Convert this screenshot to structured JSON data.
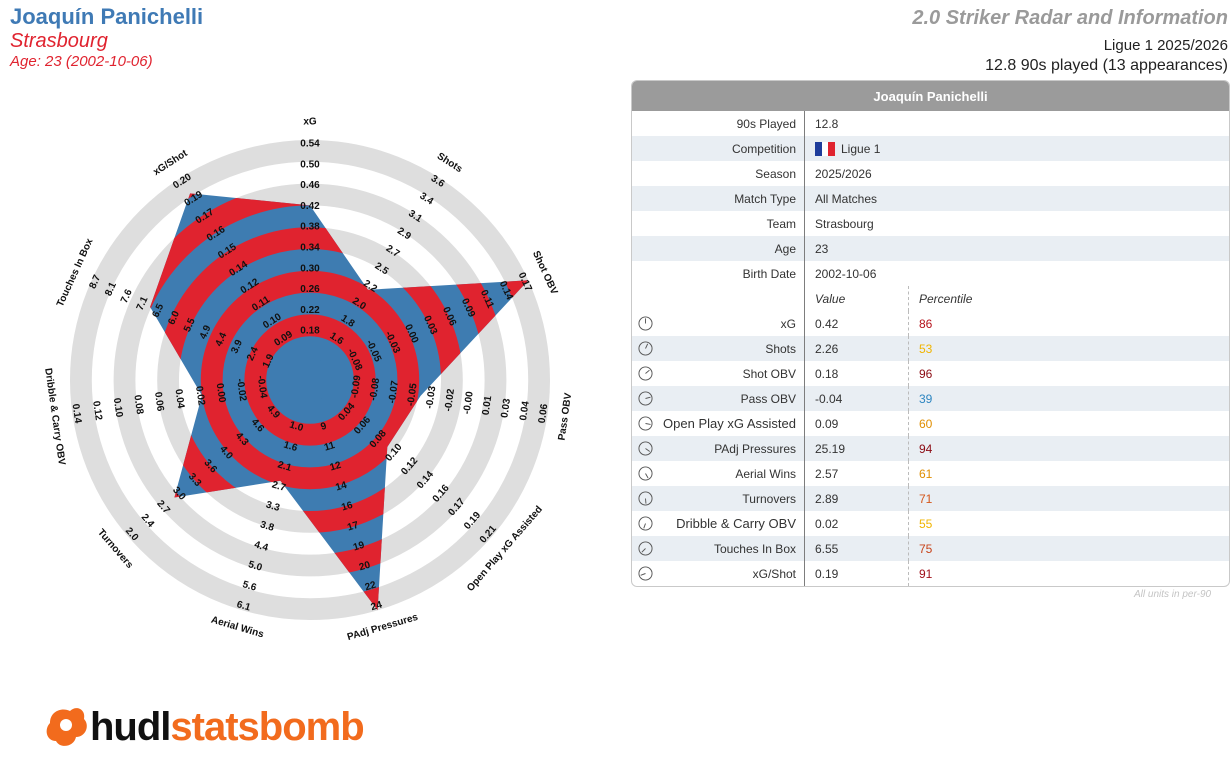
{
  "header": {
    "player_name": "Joaquín Panichelli",
    "team": "Strasbourg",
    "age_line": "Age: 23 (2002-10-06)",
    "radar_title": "2.0 Striker Radar and Information",
    "league_season": "Ligue 1 2025/2026",
    "played_line": "12.8 90s played (13 appearances)"
  },
  "colors": {
    "blue": "#4682b4",
    "red": "#e0232f",
    "ring_grey": "#dedede",
    "poly_blue": "#3e7cb1"
  },
  "chart_data": {
    "type": "radar",
    "ring_count": 5,
    "axes": [
      {
        "label": "xG",
        "ticks": [
          "0.18",
          "0.22",
          "0.26",
          "0.30",
          "0.34",
          "0.38",
          "0.42",
          "0.46",
          "0.50",
          "0.54"
        ],
        "min": 0.14,
        "max": 0.54,
        "value": 0.42
      },
      {
        "label": "Shots",
        "ticks": [
          "1.6",
          "1.8",
          "2.0",
          "2.2",
          "2.5",
          "2.7",
          "2.9",
          "3.1",
          "3.4",
          "3.6"
        ],
        "min": 1.4,
        "max": 3.6,
        "value": 2.26
      },
      {
        "label": "Shot OBV",
        "ticks": [
          "-0.08",
          "-0.05",
          "-0.03",
          "0.00",
          "0.03",
          "0.06",
          "0.09",
          "0.11",
          "0.14",
          "0.17"
        ],
        "min": -0.11,
        "max": 0.17,
        "value": 0.18
      },
      {
        "label": "Pass OBV",
        "ticks": [
          "-0.09",
          "-0.08",
          "-0.07",
          "-0.05",
          "-0.03",
          "-0.02",
          "-0.00",
          "0.01",
          "0.03",
          "0.04",
          "0.06"
        ],
        "min": -0.11,
        "max": 0.06,
        "value": -0.04
      },
      {
        "label": "Open Play xG Assisted",
        "ticks": [
          "0.04",
          "0.06",
          "0.08",
          "0.10",
          "0.12",
          "0.14",
          "0.16",
          "0.17",
          "0.19",
          "0.21"
        ],
        "min": 0.02,
        "max": 0.21,
        "value": 0.09
      },
      {
        "label": "PAdj Pressures",
        "ticks": [
          "9",
          "11",
          "12",
          "14",
          "16",
          "17",
          "19",
          "20",
          "22",
          "24"
        ],
        "min": 7,
        "max": 24,
        "value": 25.19
      },
      {
        "label": "Aerial Wins",
        "ticks": [
          "1.0",
          "1.6",
          "2.1",
          "2.7",
          "3.3",
          "3.8",
          "4.4",
          "5.0",
          "5.6",
          "6.1"
        ],
        "min": 0.4,
        "max": 6.1,
        "value": 2.57
      },
      {
        "label": "Turnovers",
        "ticks": [
          "4.9",
          "4.6",
          "4.3",
          "4.0",
          "3.6",
          "3.3",
          "3.0",
          "2.7",
          "2.4",
          "2.0"
        ],
        "min": 5.2,
        "max": 2.0,
        "value": 2.89
      },
      {
        "label": "Dribble & Carry OBV",
        "ticks": [
          "-0.04",
          "-0.02",
          "0.00",
          "0.02",
          "0.04",
          "0.06",
          "0.08",
          "0.10",
          "0.12",
          "0.14"
        ],
        "min": -0.06,
        "max": 0.14,
        "value": 0.02
      },
      {
        "label": "Touches In Box",
        "ticks": [
          "1.9",
          "2.4",
          "3.9",
          "4.4",
          "4.9",
          "5.5",
          "6.0",
          "6.5",
          "7.1",
          "7.6",
          "8.1",
          "8.7"
        ],
        "min": 1.4,
        "max": 8.7,
        "value": 6.55
      },
      {
        "label": "xG/Shot",
        "ticks": [
          "0.09",
          "0.10",
          "0.11",
          "0.12",
          "0.14",
          "0.15",
          "0.16",
          "0.17",
          "0.19",
          "0.20"
        ],
        "min": 0.08,
        "max": 0.2,
        "value": 0.19
      }
    ]
  },
  "table": {
    "title": "Joaquín Panichelli",
    "info_rows": [
      {
        "label": "90s Played",
        "value": "12.8"
      },
      {
        "label": "Competition",
        "value": "Ligue 1",
        "flag": true
      },
      {
        "label": "Season",
        "value": "2025/2026"
      },
      {
        "label": "Match Type",
        "value": "All Matches"
      },
      {
        "label": "Team",
        "value": "Strasbourg"
      },
      {
        "label": "Age",
        "value": "23"
      },
      {
        "label": "Birth Date",
        "value": "2002-10-06"
      }
    ],
    "value_header": "Value",
    "percentile_header": "Percentile",
    "metrics": [
      {
        "label": "xG",
        "value": "0.42",
        "percentile": "86",
        "color": "#b5121b",
        "icon": "gauge-icon"
      },
      {
        "label": "Shots",
        "value": "2.26",
        "percentile": "53",
        "color": "#f0b400",
        "icon": "gauge-icon"
      },
      {
        "label": "Shot OBV",
        "value": "0.18",
        "percentile": "96",
        "color": "#8b0a12",
        "icon": "gauge-icon"
      },
      {
        "label": "Pass OBV",
        "value": "-0.04",
        "percentile": "39",
        "color": "#2e86c1",
        "icon": "gauge-icon"
      },
      {
        "label": "Open Play xG Assisted",
        "value": "0.09",
        "percentile": "60",
        "color": "#e08e00",
        "icon": "gauge-icon"
      },
      {
        "label": "PAdj Pressures",
        "value": "25.19",
        "percentile": "94",
        "color": "#8b0a12",
        "icon": "gauge-icon"
      },
      {
        "label": "Aerial Wins",
        "value": "2.57",
        "percentile": "61",
        "color": "#e08e00",
        "icon": "gauge-icon"
      },
      {
        "label": "Turnovers",
        "value": "2.89",
        "percentile": "71",
        "color": "#d4561a",
        "icon": "gauge-icon"
      },
      {
        "label": "Dribble & Carry OBV",
        "value": "0.02",
        "percentile": "55",
        "color": "#f0b400",
        "icon": "gauge-icon"
      },
      {
        "label": "Touches In Box",
        "value": "6.55",
        "percentile": "75",
        "color": "#c8441a",
        "icon": "gauge-icon"
      },
      {
        "label": "xG/Shot",
        "value": "0.19",
        "percentile": "91",
        "color": "#a0101a",
        "icon": "gauge-icon"
      }
    ],
    "footnote": "All units in per-90"
  },
  "logo": {
    "part1": "hudl",
    "part2": "statsbomb",
    "icon": "hudl-statsbomb-logo-icon"
  }
}
